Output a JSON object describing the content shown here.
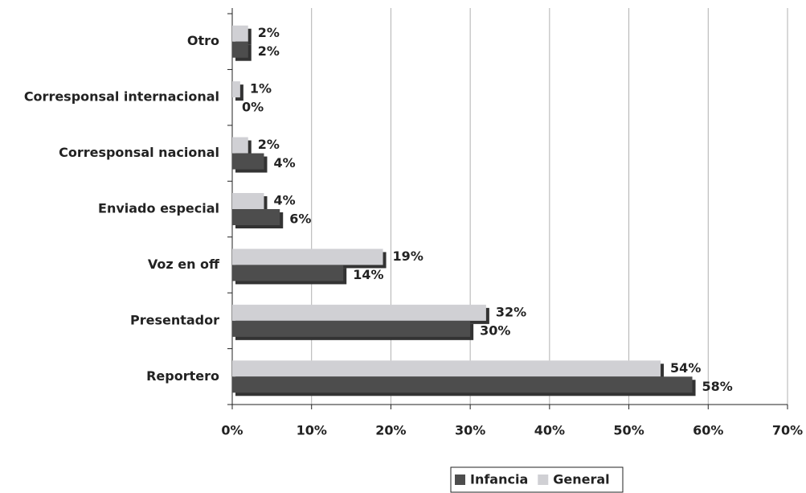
{
  "chart_data": {
    "type": "bar",
    "orientation": "horizontal",
    "categories": [
      "Otro",
      "Corresponsal internacional",
      "Corresponsal nacional",
      "Enviado especial",
      "Voz en off",
      "Presentador",
      "Reportero"
    ],
    "series": [
      {
        "name": "Infancia",
        "color": "#4d4d4d",
        "values": [
          2,
          0,
          4,
          6,
          14,
          30,
          58
        ],
        "value_labels": [
          "2%",
          "0%",
          "4%",
          "6%",
          "14%",
          "30%",
          "58%"
        ]
      },
      {
        "name": "General",
        "color": "#d0d0d4",
        "values": [
          2,
          1,
          2,
          4,
          19,
          32,
          54
        ],
        "value_labels": [
          "2%",
          "1%",
          "2%",
          "4%",
          "19%",
          "32%",
          "54%"
        ]
      }
    ],
    "xlim": [
      0,
      70
    ],
    "xticks": [
      {
        "value": 0,
        "label": "0%"
      },
      {
        "value": 10,
        "label": "10%"
      },
      {
        "value": 20,
        "label": "20%"
      },
      {
        "value": 30,
        "label": "30%"
      },
      {
        "value": 40,
        "label": "40%"
      },
      {
        "value": 50,
        "label": "50%"
      },
      {
        "value": 60,
        "label": "60%"
      },
      {
        "value": 70,
        "label": "70%"
      }
    ],
    "grid": true,
    "legend": "bottom"
  }
}
